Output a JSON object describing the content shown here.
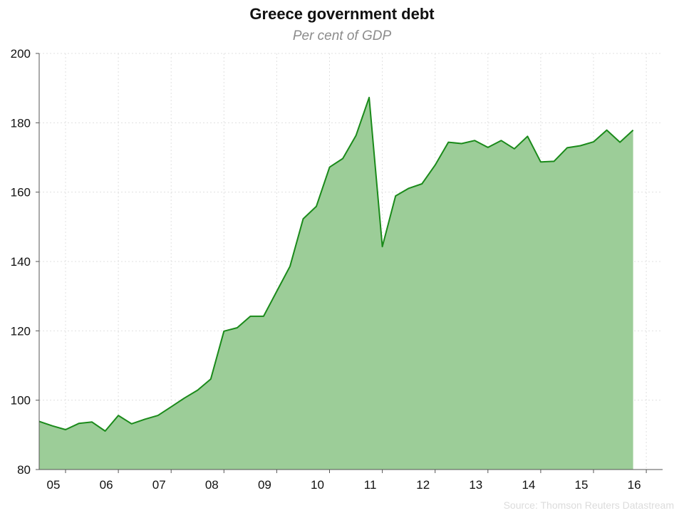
{
  "chart_data": {
    "type": "area",
    "title": "Greece government debt",
    "subtitle": "Per cent of GDP",
    "source": "Source: Thomson Reuters Datastream",
    "xlabel": "",
    "ylabel": "",
    "ylim": [
      80,
      200
    ],
    "yticks": [
      80,
      100,
      120,
      140,
      160,
      180,
      200
    ],
    "xticks": [
      "05",
      "06",
      "07",
      "08",
      "09",
      "10",
      "11",
      "12",
      "13",
      "14",
      "15",
      "16"
    ],
    "grid": true,
    "legend": "none",
    "colors": {
      "line": "#1a8a1a",
      "fill": "#9ccd98",
      "grid": "#e0e0e0",
      "axis": "#555555"
    },
    "series": [
      {
        "x": [
          "2005-Q1",
          "2005-Q2",
          "2005-Q3",
          "2005-Q4",
          "2006-Q1",
          "2006-Q2",
          "2006-Q3",
          "2006-Q4",
          "2007-Q1",
          "2007-Q2",
          "2007-Q3",
          "2007-Q4",
          "2008-Q1",
          "2008-Q2",
          "2008-Q3",
          "2008-Q4",
          "2009-Q1",
          "2009-Q2",
          "2009-Q3",
          "2009-Q4",
          "2010-Q1",
          "2010-Q2",
          "2010-Q3",
          "2010-Q4",
          "2011-Q1",
          "2011-Q2",
          "2011-Q3",
          "2011-Q4",
          "2012-Q1",
          "2012-Q2",
          "2012-Q3",
          "2012-Q4",
          "2013-Q1",
          "2013-Q2",
          "2013-Q3",
          "2013-Q4",
          "2014-Q1",
          "2014-Q2",
          "2014-Q3",
          "2014-Q4",
          "2015-Q1",
          "2015-Q2",
          "2015-Q3",
          "2015-Q4",
          "2016-Q1",
          "2016-Q2"
        ],
        "values": [
          93.9,
          92.6,
          91.5,
          93.3,
          93.7,
          91.1,
          95.6,
          93.2,
          94.5,
          95.6,
          98.1,
          100.6,
          102.9,
          106.1,
          119.9,
          120.9,
          124.2,
          124.2,
          131.4,
          138.6,
          152.3,
          155.9,
          167.2,
          169.7,
          176.3,
          187.3,
          144.3,
          158.9,
          161.1,
          162.4,
          167.8,
          174.4,
          174.0,
          174.9,
          172.9,
          174.9,
          172.5,
          176.1,
          168.7,
          168.9,
          172.8,
          173.4,
          174.5,
          177.9,
          174.4,
          177.9
        ]
      }
    ]
  }
}
